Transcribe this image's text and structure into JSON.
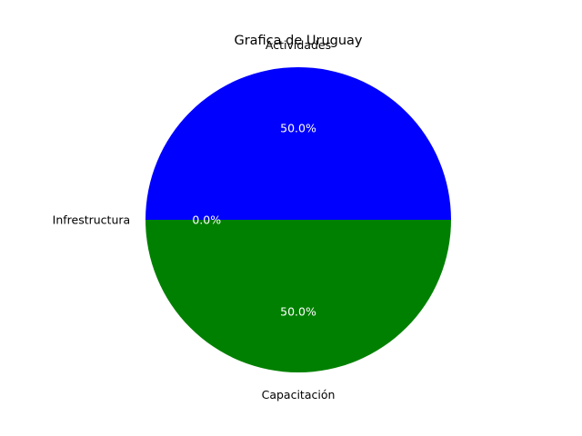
{
  "chart_data": {
    "type": "pie",
    "title": "Grafica de Uruguay",
    "labels": [
      "Actividades",
      "Infrestructura",
      "Capacitación"
    ],
    "values": [
      50,
      0,
      50
    ],
    "percent_labels": [
      "50.0%",
      "0.0%",
      "50.0%"
    ],
    "colors": [
      "#0000ff",
      "#ff0000",
      "#008000"
    ],
    "start_angle": 0,
    "direction": "counterclockwise",
    "legend": "none"
  }
}
